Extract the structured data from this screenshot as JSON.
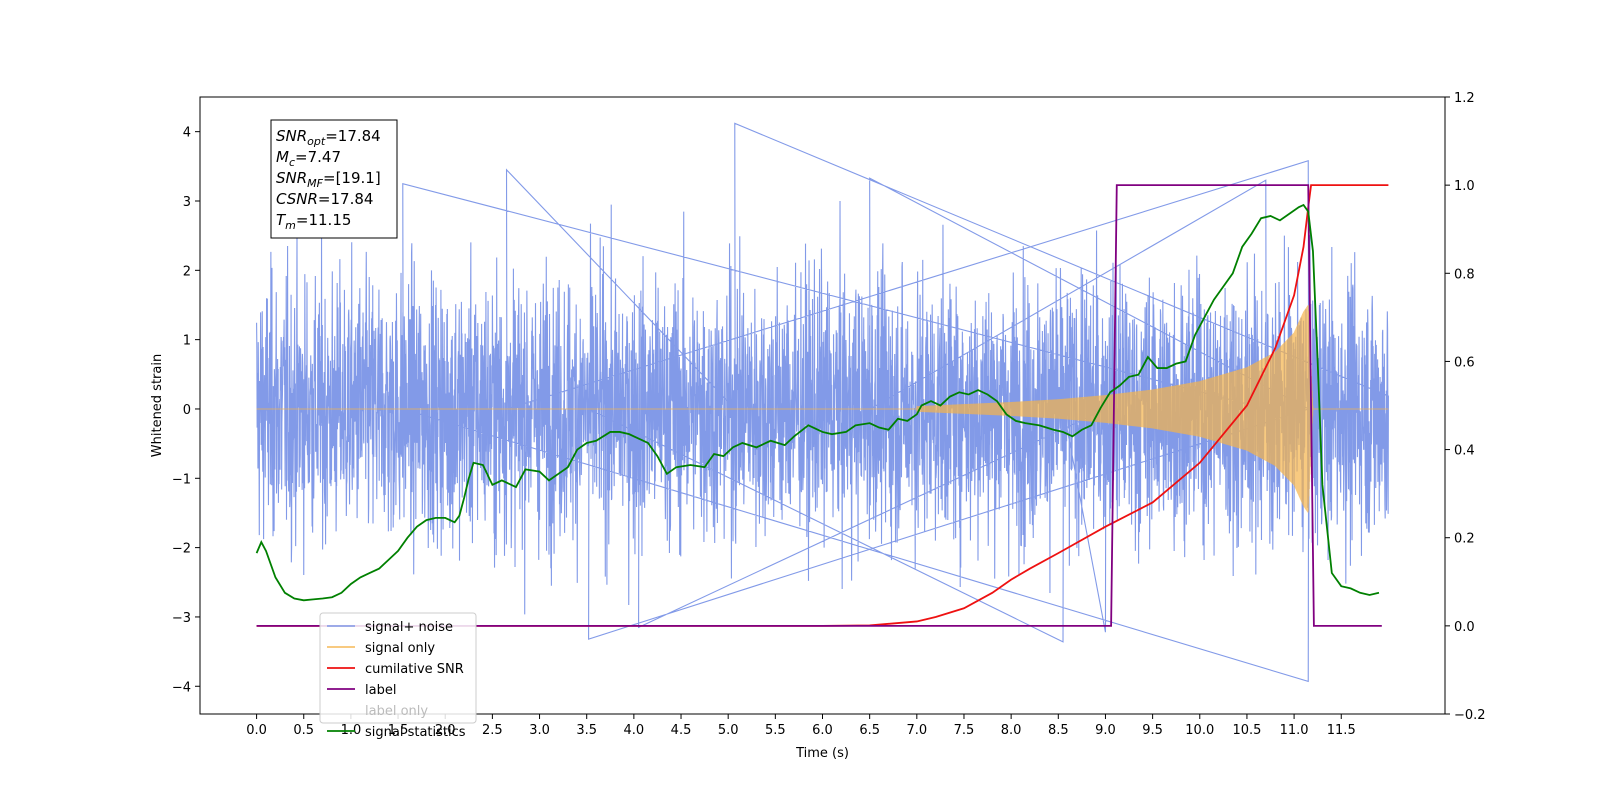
{
  "chart_data": {
    "type": "line",
    "xlabel": "Time (s)",
    "ylabel": "Whitened strain",
    "xlim": [
      -0.6,
      12.6
    ],
    "ylim": [
      -4.4,
      4.5
    ],
    "y2lim": [
      -0.2,
      1.2
    ],
    "x_ticks": [
      "0.0",
      "0.5",
      "1.0",
      "1.5",
      "2.0",
      "2.5",
      "3.0",
      "3.5",
      "4.0",
      "4.5",
      "5.0",
      "5.5",
      "6.0",
      "6.5",
      "7.0",
      "7.5",
      "8.0",
      "8.5",
      "9.0",
      "9.5",
      "10.0",
      "10.5",
      "11.0",
      "11.5"
    ],
    "y_ticks": [
      "4",
      "3",
      "2",
      "1",
      "0",
      "−1",
      "−2",
      "−3",
      "−4"
    ],
    "y2_ticks": [
      "1.2",
      "1.0",
      "0.8",
      "0.6",
      "0.4",
      "0.2",
      "0.0",
      "−0.2"
    ],
    "grid": false,
    "legend_position": "lower-left",
    "annotation": {
      "lines": [
        {
          "base": "SNR",
          "sub": "opt",
          "rest": "=17.84"
        },
        {
          "base": "M",
          "sub": "c",
          "rest": "=7.47"
        },
        {
          "base": "SNR",
          "sub": "MF",
          "rest": "=[19.1]"
        },
        {
          "base": "CSNR",
          "sub": "",
          "rest": "=17.84"
        },
        {
          "base": "T",
          "sub": "m",
          "rest": "=11.15"
        }
      ]
    },
    "noise": {
      "t_start": 0.0,
      "t_end": 12.0,
      "typical_amplitude": 1.7,
      "spikes": [
        {
          "x": 5.07,
          "y": 4.12
        },
        {
          "x": 2.65,
          "y": 3.45
        },
        {
          "x": 11.15,
          "y": 3.58
        },
        {
          "x": 6.5,
          "y": 3.33
        },
        {
          "x": 10.7,
          "y": 3.3
        },
        {
          "x": 1.55,
          "y": 3.25
        },
        {
          "x": 11.15,
          "y": -3.93
        },
        {
          "x": 3.52,
          "y": -3.32
        },
        {
          "x": 8.55,
          "y": -3.36
        },
        {
          "x": 9.0,
          "y": -3.22
        },
        {
          "x": 4.05,
          "y": -3.15
        }
      ]
    },
    "chirp": {
      "t_start": 7.0,
      "t_merge": 11.15,
      "envelope": [
        [
          7.0,
          0.04
        ],
        [
          7.5,
          0.07
        ],
        [
          8.0,
          0.1
        ],
        [
          8.5,
          0.14
        ],
        [
          9.0,
          0.2
        ],
        [
          9.5,
          0.28
        ],
        [
          10.0,
          0.4
        ],
        [
          10.5,
          0.6
        ],
        [
          10.8,
          0.82
        ],
        [
          11.0,
          1.1
        ],
        [
          11.1,
          1.4
        ],
        [
          11.15,
          1.5
        ],
        [
          11.2,
          0.0
        ]
      ]
    },
    "series": [
      {
        "name": "signal+ noise",
        "color": "#7b95e7",
        "axis": "left"
      },
      {
        "name": "signal only",
        "color": "#f5b44a",
        "axis": "left"
      },
      {
        "name": "cumilative SNR",
        "color": "#ee1111",
        "axis": "right",
        "points": [
          [
            0.0,
            0.0
          ],
          [
            6.0,
            0.0
          ],
          [
            6.5,
            0.001
          ],
          [
            7.0,
            0.01
          ],
          [
            7.2,
            0.02
          ],
          [
            7.5,
            0.04
          ],
          [
            7.8,
            0.075
          ],
          [
            8.0,
            0.105
          ],
          [
            8.2,
            0.13
          ],
          [
            8.5,
            0.165
          ],
          [
            9.0,
            0.225
          ],
          [
            9.5,
            0.28
          ],
          [
            10.0,
            0.37
          ],
          [
            10.5,
            0.5
          ],
          [
            10.8,
            0.63
          ],
          [
            11.0,
            0.75
          ],
          [
            11.1,
            0.86
          ],
          [
            11.15,
            0.95
          ],
          [
            11.18,
            1.0
          ],
          [
            12.0,
            1.0
          ]
        ]
      },
      {
        "name": "label",
        "color": "#800080",
        "axis": "right",
        "points": [
          [
            0.0,
            0.0
          ],
          [
            9.06,
            0.0
          ],
          [
            9.12,
            1.0
          ],
          [
            11.15,
            1.0
          ],
          [
            11.21,
            0.0
          ],
          [
            11.93,
            0.0
          ]
        ]
      },
      {
        "name": "label only",
        "color": "#bbbbbb",
        "axis": "right",
        "legend_only": true
      },
      {
        "name": "signal statistics",
        "color": "#008000",
        "axis": "right",
        "points": [
          [
            0.0,
            0.165
          ],
          [
            0.05,
            0.19
          ],
          [
            0.1,
            0.17
          ],
          [
            0.2,
            0.11
          ],
          [
            0.3,
            0.075
          ],
          [
            0.4,
            0.062
          ],
          [
            0.5,
            0.058
          ],
          [
            0.6,
            0.06
          ],
          [
            0.7,
            0.062
          ],
          [
            0.8,
            0.065
          ],
          [
            0.9,
            0.075
          ],
          [
            1.0,
            0.095
          ],
          [
            1.1,
            0.11
          ],
          [
            1.2,
            0.12
          ],
          [
            1.3,
            0.13
          ],
          [
            1.4,
            0.15
          ],
          [
            1.5,
            0.17
          ],
          [
            1.6,
            0.2
          ],
          [
            1.7,
            0.225
          ],
          [
            1.8,
            0.24
          ],
          [
            1.9,
            0.245
          ],
          [
            2.0,
            0.245
          ],
          [
            2.1,
            0.235
          ],
          [
            2.15,
            0.25
          ],
          [
            2.2,
            0.29
          ],
          [
            2.25,
            0.335
          ],
          [
            2.3,
            0.37
          ],
          [
            2.4,
            0.365
          ],
          [
            2.5,
            0.32
          ],
          [
            2.6,
            0.33
          ],
          [
            2.75,
            0.315
          ],
          [
            2.85,
            0.355
          ],
          [
            3.0,
            0.35
          ],
          [
            3.1,
            0.33
          ],
          [
            3.2,
            0.345
          ],
          [
            3.3,
            0.36
          ],
          [
            3.4,
            0.4
          ],
          [
            3.5,
            0.415
          ],
          [
            3.6,
            0.42
          ],
          [
            3.75,
            0.44
          ],
          [
            3.85,
            0.44
          ],
          [
            3.95,
            0.435
          ],
          [
            4.05,
            0.425
          ],
          [
            4.15,
            0.415
          ],
          [
            4.25,
            0.385
          ],
          [
            4.35,
            0.345
          ],
          [
            4.45,
            0.36
          ],
          [
            4.6,
            0.365
          ],
          [
            4.75,
            0.36
          ],
          [
            4.85,
            0.39
          ],
          [
            4.95,
            0.385
          ],
          [
            5.05,
            0.405
          ],
          [
            5.15,
            0.415
          ],
          [
            5.3,
            0.405
          ],
          [
            5.45,
            0.42
          ],
          [
            5.6,
            0.41
          ],
          [
            5.7,
            0.43
          ],
          [
            5.85,
            0.455
          ],
          [
            6.0,
            0.44
          ],
          [
            6.1,
            0.435
          ],
          [
            6.25,
            0.44
          ],
          [
            6.35,
            0.455
          ],
          [
            6.5,
            0.46
          ],
          [
            6.6,
            0.45
          ],
          [
            6.7,
            0.445
          ],
          [
            6.8,
            0.47
          ],
          [
            6.9,
            0.465
          ],
          [
            7.0,
            0.48
          ],
          [
            7.05,
            0.5
          ],
          [
            7.15,
            0.51
          ],
          [
            7.25,
            0.5
          ],
          [
            7.35,
            0.52
          ],
          [
            7.45,
            0.53
          ],
          [
            7.55,
            0.525
          ],
          [
            7.65,
            0.535
          ],
          [
            7.75,
            0.525
          ],
          [
            7.85,
            0.51
          ],
          [
            7.95,
            0.48
          ],
          [
            8.05,
            0.465
          ],
          [
            8.15,
            0.46
          ],
          [
            8.3,
            0.455
          ],
          [
            8.45,
            0.445
          ],
          [
            8.55,
            0.44
          ],
          [
            8.65,
            0.43
          ],
          [
            8.75,
            0.445
          ],
          [
            8.85,
            0.455
          ],
          [
            8.95,
            0.495
          ],
          [
            9.05,
            0.53
          ],
          [
            9.15,
            0.545
          ],
          [
            9.25,
            0.565
          ],
          [
            9.35,
            0.57
          ],
          [
            9.45,
            0.61
          ],
          [
            9.55,
            0.585
          ],
          [
            9.65,
            0.585
          ],
          [
            9.75,
            0.595
          ],
          [
            9.85,
            0.6
          ],
          [
            9.95,
            0.66
          ],
          [
            10.05,
            0.7
          ],
          [
            10.15,
            0.74
          ],
          [
            10.25,
            0.77
          ],
          [
            10.35,
            0.8
          ],
          [
            10.45,
            0.86
          ],
          [
            10.55,
            0.89
          ],
          [
            10.65,
            0.925
          ],
          [
            10.75,
            0.93
          ],
          [
            10.85,
            0.92
          ],
          [
            10.95,
            0.935
          ],
          [
            11.05,
            0.95
          ],
          [
            11.1,
            0.955
          ],
          [
            11.15,
            0.94
          ],
          [
            11.2,
            0.85
          ],
          [
            11.25,
            0.6
          ],
          [
            11.3,
            0.32
          ],
          [
            11.4,
            0.12
          ],
          [
            11.5,
            0.09
          ],
          [
            11.6,
            0.085
          ],
          [
            11.7,
            0.075
          ],
          [
            11.8,
            0.07
          ],
          [
            11.9,
            0.075
          ]
        ]
      }
    ]
  }
}
